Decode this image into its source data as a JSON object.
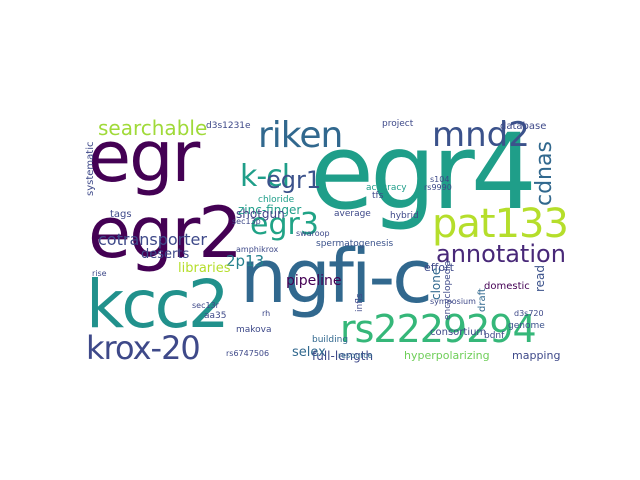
{
  "words": [
    {
      "text": "egr4",
      "color": "#1f9e89"
    },
    {
      "text": "egr",
      "color": "#440154"
    },
    {
      "text": "ngfi-c",
      "color": "#31688e"
    },
    {
      "text": "egr2",
      "color": "#440154"
    },
    {
      "text": "kcc2",
      "color": "#21918c"
    },
    {
      "text": "rs2229294",
      "color": "#35b779"
    },
    {
      "text": "pat133",
      "color": "#b5de2b"
    },
    {
      "text": "riken",
      "color": "#31688e"
    },
    {
      "text": "mnd2",
      "color": "#3b528b"
    },
    {
      "text": "krox-20",
      "color": "#3e4989"
    },
    {
      "text": "egr3",
      "color": "#20a386"
    },
    {
      "text": "k-cl",
      "color": "#1f9e89"
    },
    {
      "text": "egr1",
      "color": "#3b528b"
    },
    {
      "text": "annotation",
      "color": "#482878"
    },
    {
      "text": "searchable",
      "color": "#a0da39"
    },
    {
      "text": "cdnas",
      "color": "#31688e"
    },
    {
      "text": "cotransporter",
      "color": "#3e4989"
    },
    {
      "text": "2p13",
      "color": "#26828e"
    },
    {
      "text": "zinc-finger",
      "color": "#1f9e89"
    },
    {
      "text": "pipeline",
      "color": "#440154"
    },
    {
      "text": "shotgun",
      "color": "#414487"
    },
    {
      "text": "deserts",
      "color": "#3e4989"
    },
    {
      "text": "libraries",
      "color": "#b5de2b"
    },
    {
      "text": "selex",
      "color": "#31688e"
    },
    {
      "text": "full-length",
      "color": "#3e4989"
    },
    {
      "text": "hyperpolarizing",
      "color": "#6ece58"
    },
    {
      "text": "mapping",
      "color": "#3e4989"
    },
    {
      "text": "domestic",
      "color": "#440154"
    },
    {
      "text": "effort",
      "color": "#3e4989"
    },
    {
      "text": "read",
      "color": "#3b528b"
    },
    {
      "text": "clone",
      "color": "#31688e"
    },
    {
      "text": "consortium",
      "color": "#3e4989"
    },
    {
      "text": "genome",
      "color": "#3b528b"
    },
    {
      "text": "draft",
      "color": "#31688e"
    },
    {
      "text": "database",
      "color": "#3e4989"
    },
    {
      "text": "project",
      "color": "#3e4989"
    },
    {
      "text": "tags",
      "color": "#3e4989"
    },
    {
      "text": "systematic",
      "color": "#3e4989"
    },
    {
      "text": "chloride",
      "color": "#1f9e89"
    },
    {
      "text": "spermatogenesis",
      "color": "#3b528b"
    },
    {
      "text": "average",
      "color": "#3e4989"
    },
    {
      "text": "accuracy",
      "color": "#1f9e89"
    },
    {
      "text": "hybrid",
      "color": "#3e4989"
    },
    {
      "text": "tfs",
      "color": "#3e4989"
    },
    {
      "text": "d3s1231e",
      "color": "#3e4989"
    },
    {
      "text": "bdnf",
      "color": "#3e4989"
    },
    {
      "text": "d3s720",
      "color": "#3e4989"
    },
    {
      "text": "aa35",
      "color": "#3e4989"
    },
    {
      "text": "makova",
      "color": "#3e4989"
    },
    {
      "text": "building",
      "color": "#31688e"
    },
    {
      "text": "resource",
      "color": "#31688e"
    },
    {
      "text": "encyclopedia",
      "color": "#3e4989"
    },
    {
      "text": "infls",
      "color": "#3e4989"
    },
    {
      "text": "sec13r",
      "color": "#3e4989"
    },
    {
      "text": "sec13p",
      "color": "#3e4989"
    },
    {
      "text": "amphikrox",
      "color": "#3e4989"
    },
    {
      "text": "swaroop",
      "color": "#3e4989"
    },
    {
      "text": "rise",
      "color": "#3e4989"
    },
    {
      "text": "rs6747506",
      "color": "#3e4989"
    },
    {
      "text": "symposium",
      "color": "#3e4989"
    },
    {
      "text": "s104",
      "color": "#3e4989"
    },
    {
      "text": "rh",
      "color": "#3e4989"
    },
    {
      "text": "rs9990",
      "color": "#3e4989"
    }
  ]
}
